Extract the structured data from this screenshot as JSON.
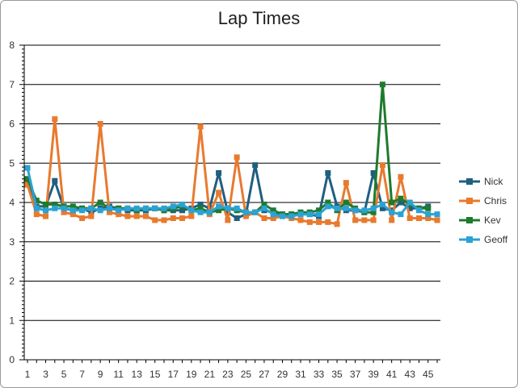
{
  "chart_data": {
    "type": "line",
    "title": "Lap Times",
    "xlabel": "",
    "ylabel": "",
    "ylim": [
      0,
      8
    ],
    "yticks": [
      0,
      1,
      2,
      3,
      4,
      5,
      6,
      7,
      8
    ],
    "xlim": [
      1,
      46
    ],
    "xtick_labels": [
      "1",
      "3",
      "5",
      "7",
      "9",
      "11",
      "13",
      "15",
      "17",
      "19",
      "21",
      "23",
      "25",
      "27",
      "29",
      "31",
      "33",
      "35",
      "37",
      "39",
      "41",
      "43",
      "45"
    ],
    "grid": "horizontal",
    "legend_position": "right",
    "series": [
      {
        "name": "Nick",
        "color": "#1f5f7f",
        "values": [
          4.55,
          3.9,
          3.9,
          4.55,
          3.85,
          3.8,
          3.85,
          3.75,
          3.85,
          3.9,
          3.85,
          3.8,
          3.8,
          3.8,
          3.85,
          3.8,
          3.8,
          3.8,
          3.85,
          3.95,
          3.85,
          4.75,
          3.75,
          3.6,
          3.7,
          4.95,
          3.8,
          3.75,
          3.7,
          3.7,
          3.7,
          3.7,
          3.65,
          4.75,
          3.9,
          3.8,
          3.8,
          3.75,
          4.75,
          3.85,
          3.8,
          4.0,
          3.85,
          3.85,
          3.9,
          null
        ]
      },
      {
        "name": "Chris",
        "color": "#e87a2e",
        "values": [
          4.45,
          3.7,
          3.65,
          6.12,
          3.75,
          3.7,
          3.6,
          3.65,
          6.0,
          3.75,
          3.7,
          3.65,
          3.65,
          3.65,
          3.55,
          3.55,
          3.6,
          3.6,
          3.65,
          5.93,
          3.7,
          4.25,
          3.55,
          5.15,
          3.65,
          3.75,
          3.6,
          3.6,
          3.65,
          3.6,
          3.55,
          3.5,
          3.5,
          3.5,
          3.45,
          4.5,
          3.55,
          3.55,
          3.55,
          4.95,
          3.55,
          4.65,
          3.6,
          3.6,
          3.6,
          3.55
        ]
      },
      {
        "name": "Kev",
        "color": "#1e7b2c",
        "values": [
          4.6,
          4.05,
          3.95,
          3.95,
          3.9,
          3.9,
          3.85,
          3.85,
          4.0,
          3.85,
          3.85,
          3.85,
          3.8,
          3.85,
          3.85,
          3.8,
          3.85,
          3.9,
          3.8,
          3.85,
          3.75,
          3.8,
          3.85,
          3.8,
          3.75,
          3.75,
          3.95,
          3.8,
          3.7,
          3.7,
          3.75,
          3.75,
          3.8,
          4.0,
          3.8,
          4.0,
          3.85,
          3.75,
          3.75,
          7.0,
          4.0,
          4.1,
          3.95,
          3.85,
          3.85,
          null
        ]
      },
      {
        "name": "Geoff",
        "color": "#2aa2d4",
        "values": [
          4.88,
          3.85,
          3.8,
          3.85,
          3.85,
          3.8,
          3.8,
          3.85,
          3.8,
          3.85,
          3.8,
          3.85,
          3.85,
          3.85,
          3.85,
          3.85,
          3.9,
          3.95,
          3.8,
          3.75,
          3.75,
          3.9,
          3.85,
          3.85,
          3.75,
          3.75,
          3.85,
          3.7,
          3.65,
          3.65,
          3.7,
          3.7,
          3.7,
          3.9,
          3.85,
          3.85,
          3.8,
          3.8,
          3.85,
          3.95,
          3.75,
          3.7,
          4.0,
          3.8,
          3.7,
          3.7
        ]
      }
    ]
  }
}
